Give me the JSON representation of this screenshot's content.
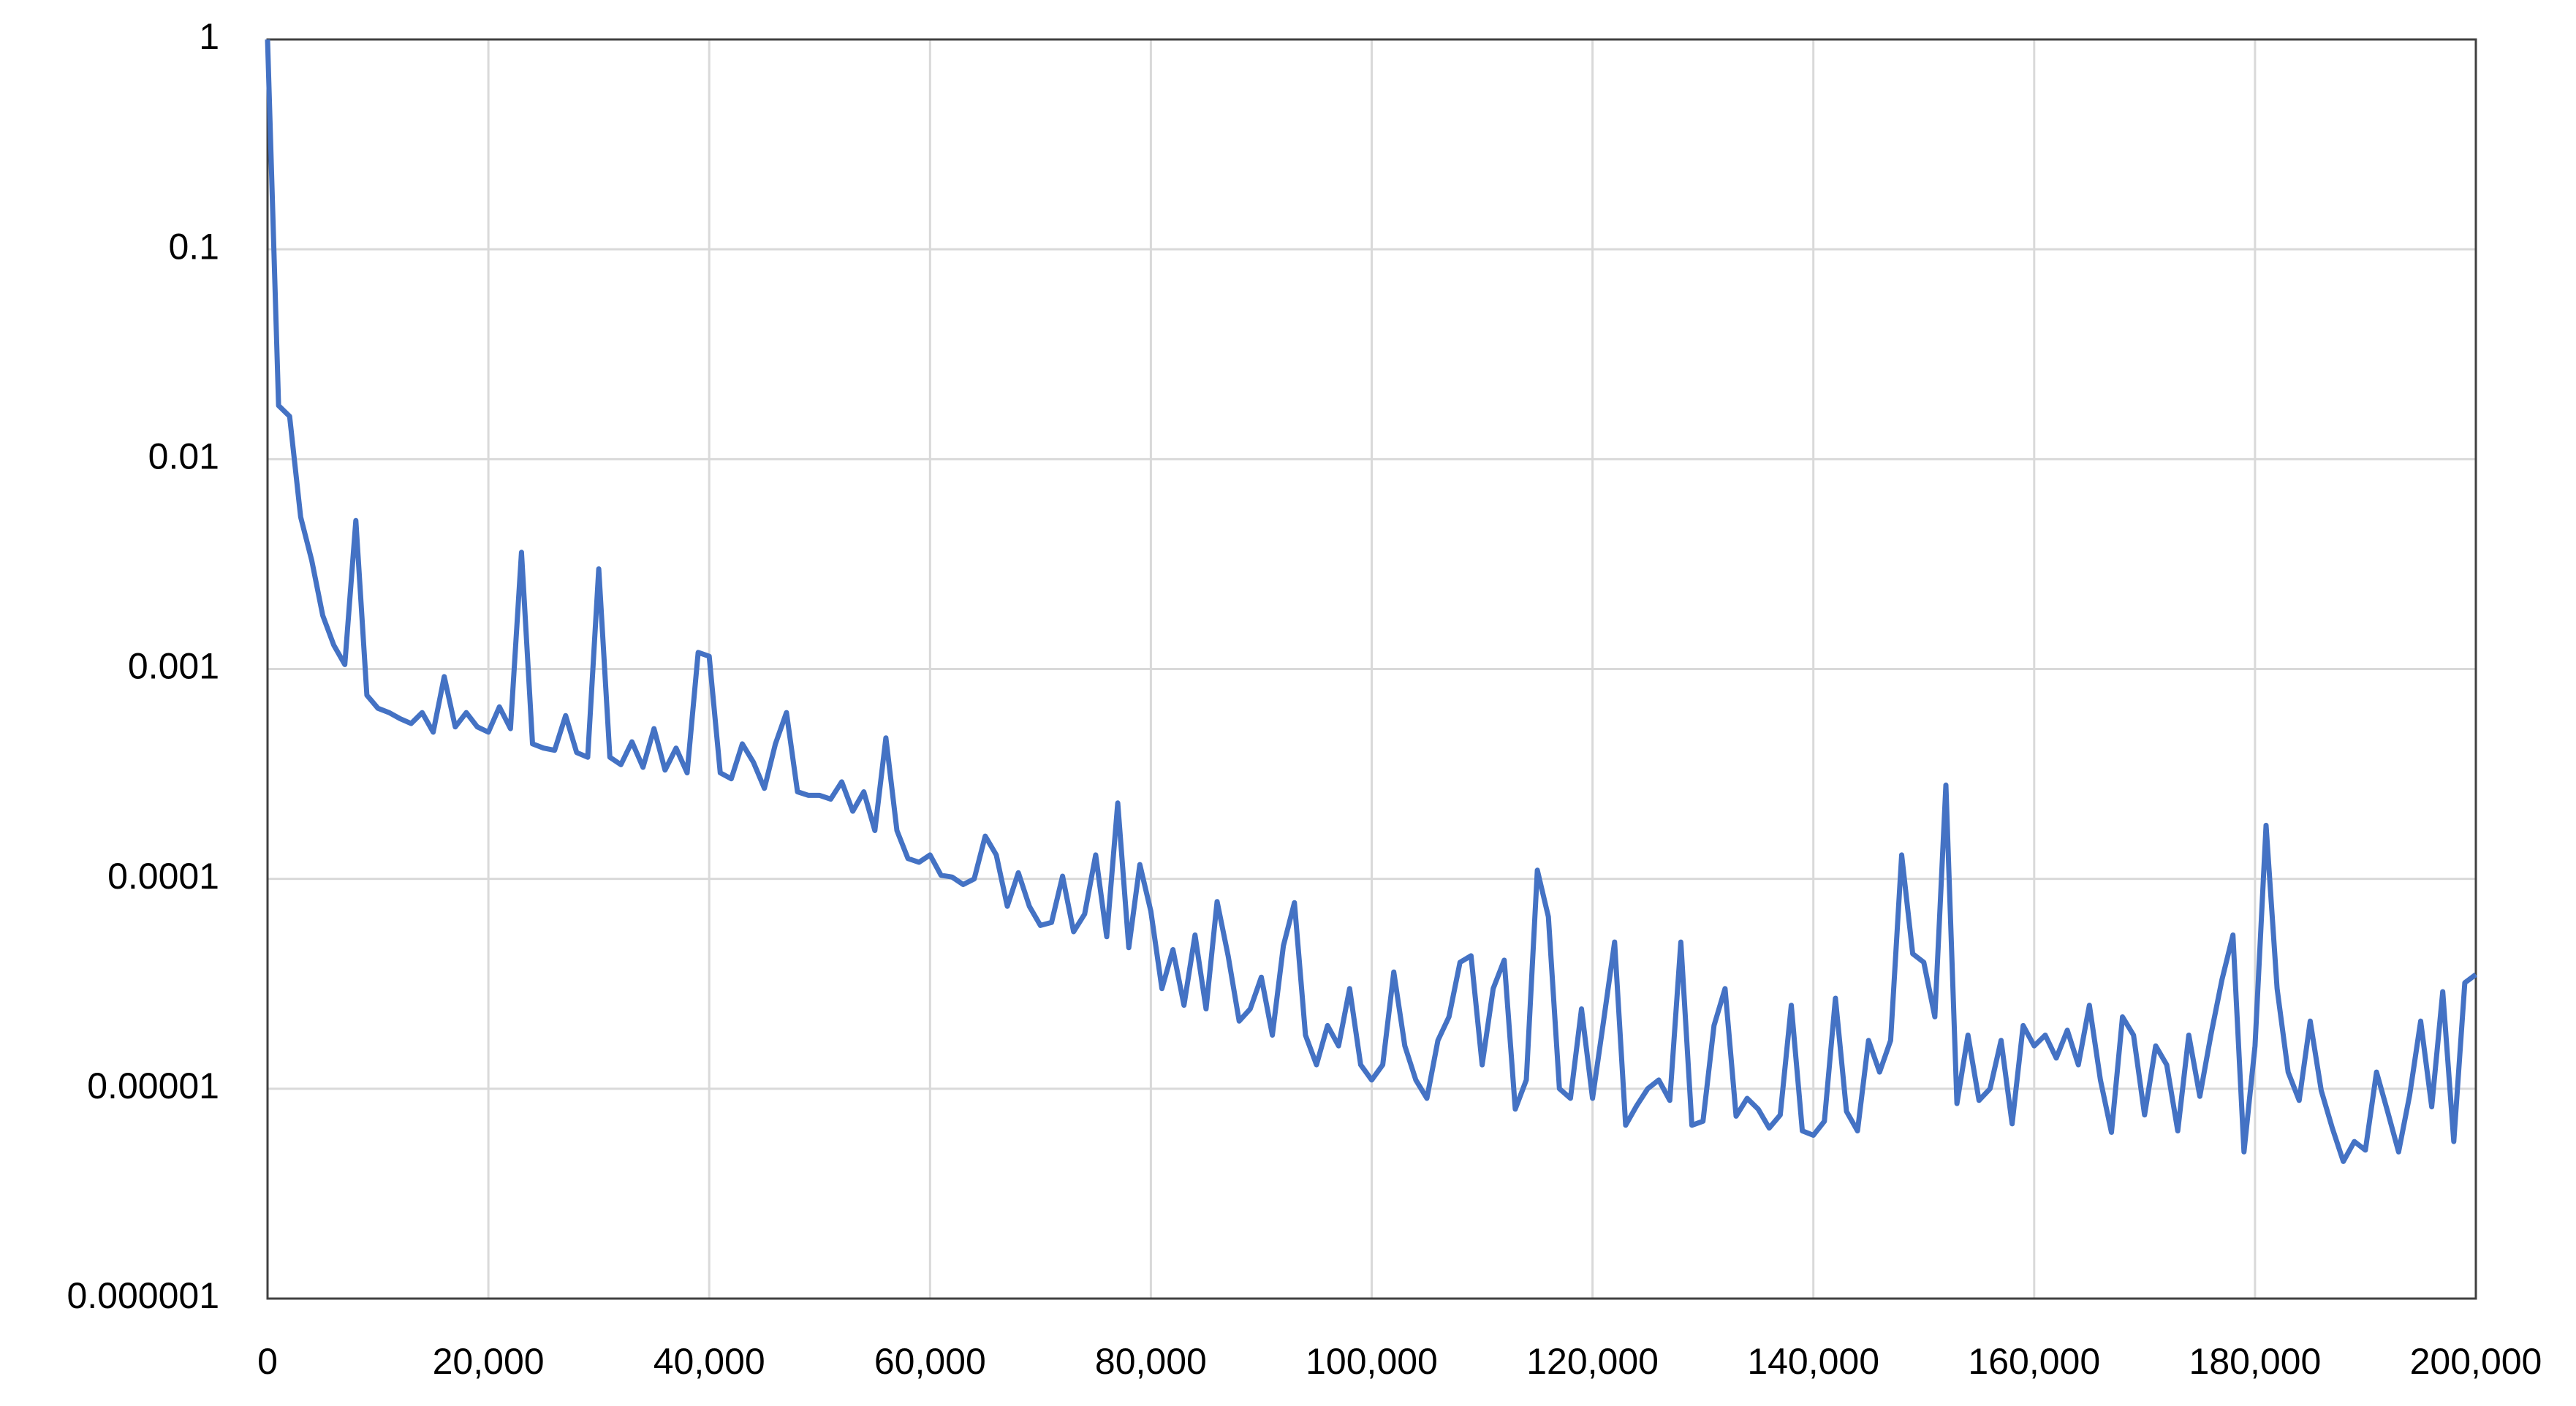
{
  "chart_data": {
    "type": "line",
    "yscale": "log",
    "grid": true,
    "x": [
      0,
      1000,
      2000,
      3000,
      4000,
      5000,
      6000,
      7000,
      8000,
      9000,
      10000,
      11000,
      12000,
      13000,
      14000,
      15000,
      16000,
      17000,
      18000,
      19000,
      20000,
      21000,
      22000,
      23000,
      24000,
      25000,
      26000,
      27000,
      28000,
      29000,
      30000,
      31000,
      32000,
      33000,
      34000,
      35000,
      36000,
      37000,
      38000,
      39000,
      40000,
      41000,
      42000,
      43000,
      44000,
      45000,
      46000,
      47000,
      48000,
      49000,
      50000,
      51000,
      52000,
      53000,
      54000,
      55000,
      56000,
      57000,
      58000,
      59000,
      60000,
      61000,
      62000,
      63000,
      64000,
      65000,
      66000,
      67000,
      68000,
      69000,
      70000,
      71000,
      72000,
      73000,
      74000,
      75000,
      76000,
      77000,
      78000,
      79000,
      80000,
      81000,
      82000,
      83000,
      84000,
      85000,
      86000,
      87000,
      88000,
      89000,
      90000,
      91000,
      92000,
      93000,
      94000,
      95000,
      96000,
      97000,
      98000,
      99000,
      100000,
      101000,
      102000,
      103000,
      104000,
      105000,
      106000,
      107000,
      108000,
      109000,
      110000,
      111000,
      112000,
      113000,
      114000,
      115000,
      116000,
      117000,
      118000,
      119000,
      120000,
      121000,
      122000,
      123000,
      124000,
      125000,
      126000,
      127000,
      128000,
      129000,
      130000,
      131000,
      132000,
      133000,
      134000,
      135000,
      136000,
      137000,
      138000,
      139000,
      140000,
      141000,
      142000,
      143000,
      144000,
      145000,
      146000,
      147000,
      148000,
      149000,
      150000,
      151000,
      152000,
      153000,
      154000,
      155000,
      156000,
      157000,
      158000,
      159000,
      160000,
      161000,
      162000,
      163000,
      164000,
      165000,
      166000,
      167000,
      168000,
      169000,
      170000,
      171000,
      172000,
      173000,
      174000,
      175000,
      176000,
      177000,
      178000,
      179000,
      180000,
      181000,
      182000,
      183000,
      184000,
      185000,
      186000,
      187000,
      188000,
      189000,
      190000,
      191000,
      192000,
      193000,
      194000,
      195000,
      196000,
      197000,
      198000,
      199000,
      200000
    ],
    "series": [
      {
        "color": "#4472c4",
        "values": [
          1,
          0.018,
          0.016,
          0.0053,
          0.0033,
          0.0018,
          0.0013,
          0.00105,
          0.0051,
          0.00075,
          0.00065,
          0.00062,
          0.00058,
          0.00055,
          0.00062,
          0.0005,
          0.00092,
          0.00053,
          0.00062,
          0.00053,
          0.0005,
          0.00066,
          0.00052,
          0.0036,
          0.00044,
          0.00042,
          0.00041,
          0.0006,
          0.0004,
          0.00038,
          0.003,
          0.00038,
          0.00035,
          0.00045,
          0.00034,
          0.00052,
          0.00033,
          0.00042,
          0.00032,
          0.0012,
          0.00115,
          0.00032,
          0.0003,
          0.00044,
          0.00036,
          0.00027,
          0.00044,
          0.00062,
          0.00026,
          0.00025,
          0.00025,
          0.00024,
          0.00029,
          0.00021,
          0.00026,
          0.00017,
          0.00047,
          0.00017,
          0.000125,
          0.00012,
          0.00013,
          0.000104,
          0.000102,
          9.4e-05,
          0.0001,
          0.00016,
          0.00013,
          7.4e-05,
          0.000107,
          7.4e-05,
          6e-05,
          6.2e-05,
          0.000103,
          5.6e-05,
          6.8e-05,
          0.00013,
          5.3e-05,
          0.00023,
          4.7e-05,
          0.000117,
          7e-05,
          3e-05,
          4.6e-05,
          2.5e-05,
          5.4e-05,
          2.4e-05,
          7.8e-05,
          4.3e-05,
          2.1e-05,
          2.4e-05,
          3.4e-05,
          1.8e-05,
          4.8e-05,
          7.7e-05,
          1.8e-05,
          1.3e-05,
          2e-05,
          1.6e-05,
          3e-05,
          1.3e-05,
          1.1e-05,
          1.3e-05,
          3.6e-05,
          1.6e-05,
          1.1e-05,
          9e-06,
          1.7e-05,
          2.2e-05,
          4e-05,
          4.3e-05,
          1.3e-05,
          3e-05,
          4.1e-05,
          8e-06,
          1.1e-05,
          0.00011,
          6.6e-05,
          1e-05,
          9e-06,
          2.4e-05,
          9e-06,
          2.1e-05,
          5e-05,
          6.7e-06,
          8.3e-06,
          1e-05,
          1.1e-05,
          8.8e-06,
          5e-05,
          6.7e-06,
          7e-06,
          2e-05,
          3e-05,
          7.4e-06,
          9e-06,
          8e-06,
          6.5e-06,
          7.5e-06,
          2.5e-05,
          6.3e-06,
          6e-06,
          7e-06,
          2.7e-05,
          7.8e-06,
          6.3e-06,
          1.7e-05,
          1.2e-05,
          1.7e-05,
          0.00013,
          4.4e-05,
          4e-05,
          2.2e-05,
          0.00028,
          8.5e-06,
          1.8e-05,
          8.8e-06,
          1e-05,
          1.7e-05,
          6.8e-06,
          2e-05,
          1.6e-05,
          1.8e-05,
          1.4e-05,
          1.9e-05,
          1.3e-05,
          2.5e-05,
          1.1e-05,
          6.2e-06,
          2.2e-05,
          1.8e-05,
          7.5e-06,
          1.6e-05,
          1.3e-05,
          6.3e-06,
          1.8e-05,
          9.2e-06,
          1.8e-05,
          3.3e-05,
          5.4e-05,
          5e-06,
          1.6e-05,
          0.00018,
          3e-05,
          1.2e-05,
          8.8e-06,
          2.1e-05,
          9.8e-06,
          6.5e-06,
          4.5e-06,
          5.6e-06,
          5.1e-06,
          1.2e-05,
          7.8e-06,
          5e-06,
          9.3e-06,
          2.1e-05,
          8.2e-06,
          2.9e-05,
          5.6e-06,
          3.2e-05,
          3.5e-05
        ]
      }
    ],
    "xlim": [
      0,
      200000
    ],
    "xticks": [
      0,
      {
        "value": 20000,
        "label": "20,000"
      },
      {
        "value": 40000,
        "label": "40,000"
      },
      {
        "value": 60000,
        "label": "60,000"
      },
      {
        "value": 80000,
        "label": "80,000"
      },
      {
        "value": 100000,
        "label": "100,000"
      },
      {
        "value": 120000,
        "label": "120,000"
      },
      {
        "value": 140000,
        "label": "140,000"
      },
      {
        "value": 160000,
        "label": "160,000"
      },
      {
        "value": 180000,
        "label": "180,000"
      },
      {
        "value": 200000,
        "label": "200,000"
      }
    ],
    "ylim": [
      1e-06,
      1
    ],
    "yticks": [
      1e-06,
      1e-05,
      0.0001,
      0.001,
      0.01,
      0.1,
      1
    ]
  }
}
